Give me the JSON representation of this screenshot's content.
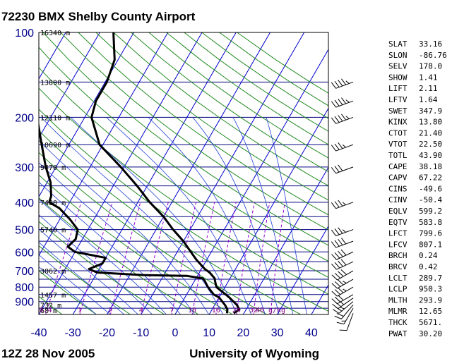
{
  "header": {
    "title": "72230 BMX Shelby County Airport",
    "date": "12Z 28 Nov 2005",
    "source": "University of Wyoming"
  },
  "colors": {
    "isobar": "#000080",
    "isotherm": "#0000cd",
    "dry_adiabat": "#228b22",
    "moist_adiabat": "#1e3fd0",
    "mixing_ratio": "#9400d3",
    "profile": "#000000"
  },
  "indices": [
    {
      "name": "SLAT",
      "value": "33.16"
    },
    {
      "name": "SLON",
      "value": "-86.76"
    },
    {
      "name": "SELV",
      "value": "178.0"
    },
    {
      "name": "SHOW",
      "value": "1.41"
    },
    {
      "name": "LIFT",
      "value": "2.11"
    },
    {
      "name": "LFTV",
      "value": "1.64"
    },
    {
      "name": "SWET",
      "value": "347.9"
    },
    {
      "name": "KINX",
      "value": "13.80"
    },
    {
      "name": "CTOT",
      "value": "21.40"
    },
    {
      "name": "VTOT",
      "value": "22.50"
    },
    {
      "name": "TOTL",
      "value": "43.90"
    },
    {
      "name": "CAPE",
      "value": "38.18"
    },
    {
      "name": "CAPV",
      "value": "67.22"
    },
    {
      "name": "CINS",
      "value": "-49.6"
    },
    {
      "name": "CINV",
      "value": "-50.4"
    },
    {
      "name": "EQLV",
      "value": "599.2"
    },
    {
      "name": "EQTV",
      "value": "583.8"
    },
    {
      "name": "LFCT",
      "value": "799.6"
    },
    {
      "name": "LFCV",
      "value": "807.1"
    },
    {
      "name": "BRCH",
      "value": "0.24"
    },
    {
      "name": "BRCV",
      "value": "0.42"
    },
    {
      "name": "LCLT",
      "value": "289.7"
    },
    {
      "name": "LCLP",
      "value": "950.3"
    },
    {
      "name": "MLTH",
      "value": "293.9"
    },
    {
      "name": "MLMR",
      "value": "12.65"
    },
    {
      "name": "THCK",
      "value": "5671."
    },
    {
      "name": "PWAT",
      "value": "30.20"
    }
  ],
  "chart_data": {
    "type": "skew-t",
    "pressure_range_hpa": [
      1000,
      100
    ],
    "temperature_range_c": [
      -40,
      45
    ],
    "pressure_ticks": [
      "100",
      "200",
      "300",
      "400",
      "500",
      "600",
      "700",
      "800",
      "900"
    ],
    "pressure_tick_values": [
      100,
      200,
      300,
      400,
      500,
      600,
      700,
      800,
      900
    ],
    "temperature_ticks": [
      "-40",
      "-30",
      "-20",
      "-10",
      "0",
      "10",
      "20",
      "30",
      "40"
    ],
    "temperature_tick_values": [
      -40,
      -30,
      -20,
      -10,
      0,
      10,
      20,
      30,
      40
    ],
    "height_labels": [
      {
        "p": 100,
        "text": "16340 m"
      },
      {
        "p": 150,
        "text": "13890 m"
      },
      {
        "p": 200,
        "text": "12110 m"
      },
      {
        "p": 250,
        "text": "10690 m"
      },
      {
        "p": 300,
        "text": "9470 m"
      },
      {
        "p": 400,
        "text": "7420 m"
      },
      {
        "p": 500,
        "text": "5740 m"
      },
      {
        "p": 700,
        "text": "3062 m"
      },
      {
        "p": 850,
        "text": "1457 m"
      },
      {
        "p": 925,
        "text": "732 m"
      },
      {
        "p": 1000,
        "text": "68 m"
      }
    ],
    "mixing_ratio_labels": [
      {
        "t": -38,
        "text": "0.4"
      },
      {
        "t": -28,
        "text": "1"
      },
      {
        "t": -19,
        "text": "2"
      },
      {
        "t": -10,
        "text": "4"
      },
      {
        "t": -1,
        "text": "7"
      },
      {
        "t": 5,
        "text": "10"
      },
      {
        "t": 12,
        "text": "16"
      },
      {
        "t": 18,
        "text": "24"
      },
      {
        "t": 23,
        "text": "32"
      },
      {
        "t": 28,
        "text": "40 g/kg"
      }
    ],
    "temperature_profile": [
      {
        "p": 990,
        "t": 17.0
      },
      {
        "p": 960,
        "t": 18.0
      },
      {
        "p": 925,
        "t": 16.5
      },
      {
        "p": 870,
        "t": 13.0
      },
      {
        "p": 850,
        "t": 11.5
      },
      {
        "p": 800,
        "t": 7.5
      },
      {
        "p": 760,
        "t": 6.0
      },
      {
        "p": 745,
        "t": 5.5
      },
      {
        "p": 710,
        "t": 3.0
      },
      {
        "p": 690,
        "t": 1.0
      },
      {
        "p": 640,
        "t": -3.0
      },
      {
        "p": 600,
        "t": -6.0
      },
      {
        "p": 550,
        "t": -10.0
      },
      {
        "p": 500,
        "t": -15.0
      },
      {
        "p": 450,
        "t": -20.0
      },
      {
        "p": 400,
        "t": -26.5
      },
      {
        "p": 350,
        "t": -33.0
      },
      {
        "p": 300,
        "t": -41.0
      },
      {
        "p": 250,
        "t": -51.0
      },
      {
        "p": 200,
        "t": -58.0
      },
      {
        "p": 175,
        "t": -59.5
      },
      {
        "p": 150,
        "t": -59.5
      },
      {
        "p": 125,
        "t": -61.0
      },
      {
        "p": 100,
        "t": -66.0
      }
    ],
    "dewpoint_profile": [
      {
        "p": 990,
        "t": 15.0
      },
      {
        "p": 960,
        "t": 14.5
      },
      {
        "p": 925,
        "t": 13.0
      },
      {
        "p": 870,
        "t": 10.0
      },
      {
        "p": 850,
        "t": 8.0
      },
      {
        "p": 800,
        "t": 5.0
      },
      {
        "p": 760,
        "t": 3.0
      },
      {
        "p": 745,
        "t": 2.0
      },
      {
        "p": 730,
        "t": -3.0
      },
      {
        "p": 725,
        "t": -16.0
      },
      {
        "p": 710,
        "t": -30.0
      },
      {
        "p": 690,
        "t": -33.0
      },
      {
        "p": 660,
        "t": -30.0
      },
      {
        "p": 630,
        "t": -30.0
      },
      {
        "p": 600,
        "t": -40.0
      },
      {
        "p": 575,
        "t": -43.0
      },
      {
        "p": 540,
        "t": -42.0
      },
      {
        "p": 500,
        "t": -43.0
      },
      {
        "p": 460,
        "t": -47.0
      },
      {
        "p": 420,
        "t": -52.0
      },
      {
        "p": 400,
        "t": -56.0
      },
      {
        "p": 380,
        "t": -56.5
      },
      {
        "p": 340,
        "t": -59.0
      },
      {
        "p": 300,
        "t": -63.0
      },
      {
        "p": 250,
        "t": -68.0
      },
      {
        "p": 200,
        "t": -74.0
      },
      {
        "p": 150,
        "t": -85.0
      },
      {
        "p": 100,
        "t": -95.0
      }
    ],
    "wind_profile": [
      {
        "p": 990,
        "dir_deg": 200,
        "speed_kt": 10
      },
      {
        "p": 950,
        "dir_deg": 210,
        "speed_kt": 15
      },
      {
        "p": 925,
        "dir_deg": 220,
        "speed_kt": 20
      },
      {
        "p": 900,
        "dir_deg": 230,
        "speed_kt": 25
      },
      {
        "p": 875,
        "dir_deg": 235,
        "speed_kt": 30
      },
      {
        "p": 850,
        "dir_deg": 240,
        "speed_kt": 30
      },
      {
        "p": 800,
        "dir_deg": 240,
        "speed_kt": 35
      },
      {
        "p": 750,
        "dir_deg": 240,
        "speed_kt": 35
      },
      {
        "p": 700,
        "dir_deg": 240,
        "speed_kt": 40
      },
      {
        "p": 650,
        "dir_deg": 245,
        "speed_kt": 40
      },
      {
        "p": 600,
        "dir_deg": 245,
        "speed_kt": 40
      },
      {
        "p": 550,
        "dir_deg": 250,
        "speed_kt": 40
      },
      {
        "p": 500,
        "dir_deg": 250,
        "speed_kt": 35
      },
      {
        "p": 400,
        "dir_deg": 250,
        "speed_kt": 35
      },
      {
        "p": 300,
        "dir_deg": 250,
        "speed_kt": 30
      },
      {
        "p": 250,
        "dir_deg": 250,
        "speed_kt": 35
      },
      {
        "p": 200,
        "dir_deg": 250,
        "speed_kt": 45
      },
      {
        "p": 175,
        "dir_deg": 250,
        "speed_kt": 45
      },
      {
        "p": 150,
        "dir_deg": 250,
        "speed_kt": 45
      }
    ]
  }
}
